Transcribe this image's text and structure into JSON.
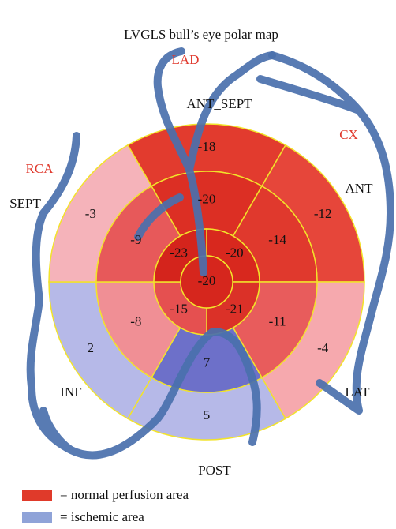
{
  "title": "LVGLS bull’s eye polar map",
  "arteries": [
    "LAD",
    "CX",
    "RCA"
  ],
  "walls": [
    "ANT_SEPT",
    "ANT",
    "LAT",
    "POST",
    "INF",
    "SEPT"
  ],
  "segments": {
    "basal": {
      "values": [
        -18,
        -12,
        -4,
        5,
        2,
        -3
      ],
      "colors": [
        "#e23b2e",
        "#e6463a",
        "#f6a9ae",
        "#b6b9e8",
        "#b6b9e8",
        "#f5b3ba"
      ]
    },
    "mid": {
      "values": [
        -20,
        -14,
        -11,
        7,
        -8,
        -9
      ],
      "colors": [
        "#dc2f24",
        "#e0392d",
        "#e85c5c",
        "#6d70c9",
        "#f08f95",
        "#e7595a"
      ]
    },
    "apical": {
      "values": [
        -20,
        -21,
        -15,
        -23
      ],
      "colors": [
        "#d8281e",
        "#db3128",
        "#e55050",
        "#d4241c"
      ]
    },
    "apex": {
      "value": -20,
      "color": "#d6261d"
    }
  },
  "legend": [
    {
      "label": "= normal perfusion area",
      "color": "#e03a2a"
    },
    {
      "label": "= ischemic area",
      "color": "#8fa3d8"
    }
  ]
}
